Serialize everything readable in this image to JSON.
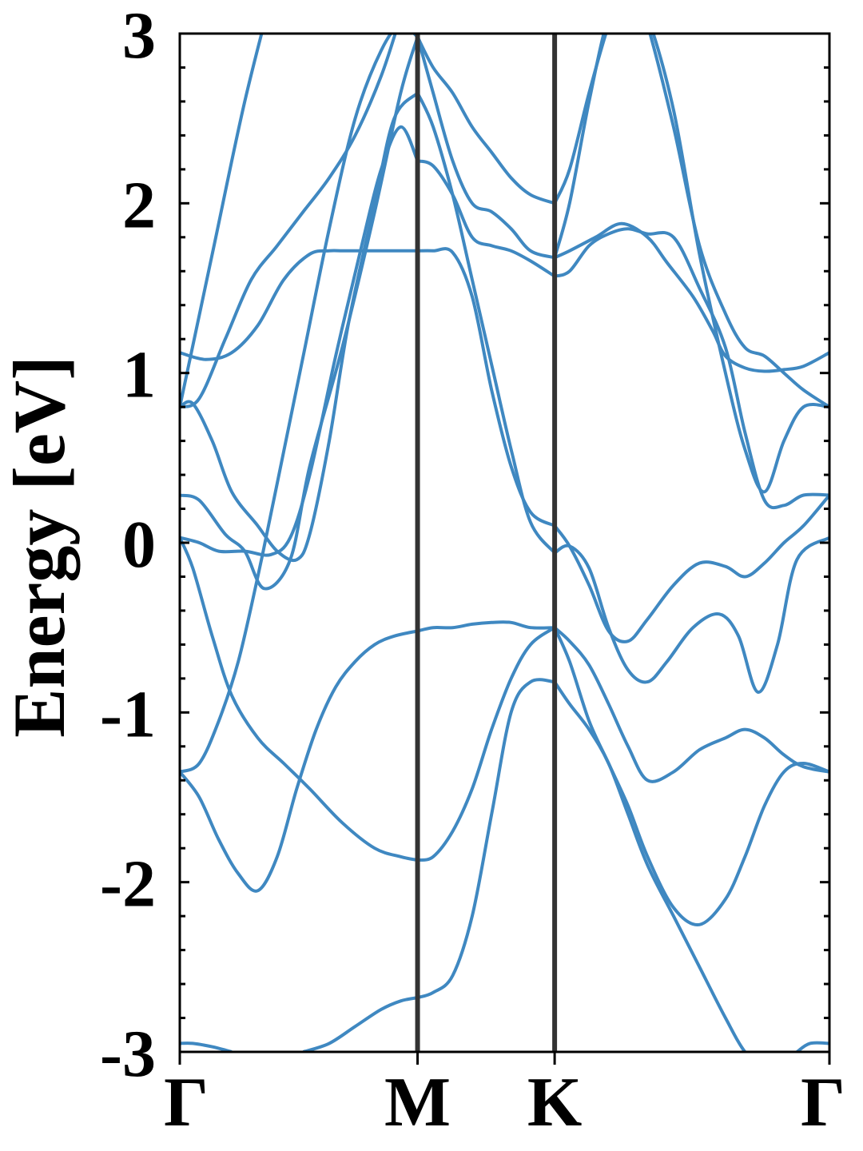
{
  "chart_data": {
    "type": "line",
    "title": "",
    "xlabel": "",
    "ylabel": "Energy [eV]",
    "ylim": [
      -3,
      3
    ],
    "y_ticks": [
      "3",
      "2",
      "1",
      "0",
      "-1",
      "-2",
      "-3"
    ],
    "y_tick_values": [
      3,
      2,
      1,
      0,
      -1,
      -2,
      -3
    ],
    "y_minor_step": 0.2,
    "k_path": [
      {
        "label": "Γ",
        "k": 0.0
      },
      {
        "label": "M",
        "k": 0.366
      },
      {
        "label": "K",
        "k": 0.577
      },
      {
        "label": "Γ",
        "k": 1.0
      }
    ],
    "line_color": "#3f88c1",
    "vline_color": "#333333",
    "grid": false,
    "legend": "none",
    "series": [
      {
        "x": [
          0,
          0.05,
          0.1,
          0.15,
          0.19
        ],
        "y": [
          0.8,
          1.7,
          2.6,
          3.35,
          3.9
        ]
      },
      {
        "x": [
          0,
          0.04,
          0.08,
          0.12,
          0.16,
          0.2,
          0.23,
          0.25,
          0.28,
          0.3,
          0.33,
          0.366
        ],
        "y": [
          1.12,
          1.08,
          1.12,
          1.28,
          1.55,
          1.7,
          1.72,
          1.72,
          1.72,
          1.72,
          1.72,
          1.72
        ]
      },
      {
        "x": [
          0.366,
          0.39,
          0.42,
          0.45,
          0.48,
          0.51,
          0.54,
          0.577
        ],
        "y": [
          1.72,
          1.72,
          1.71,
          1.45,
          0.9,
          0.45,
          0.18,
          0.1
        ]
      },
      {
        "x": [
          0.577,
          0.6,
          0.63,
          0.66,
          0.69,
          0.72,
          0.76,
          0.8,
          0.84,
          0.87,
          0.9,
          0.93,
          0.96,
          1.0
        ],
        "y": [
          0.1,
          -0.02,
          -0.25,
          -0.52,
          -0.58,
          -0.45,
          -0.25,
          -0.12,
          -0.14,
          -0.2,
          -0.12,
          0.0,
          0.1,
          0.28
        ]
      },
      {
        "x": [
          0,
          0.02,
          0.05,
          0.08,
          0.12,
          0.15,
          0.18,
          0.2,
          0.23,
          0.26,
          0.3,
          0.33,
          0.366
        ],
        "y": [
          0.8,
          0.82,
          0.6,
          0.3,
          0.1,
          -0.05,
          -0.1,
          0.05,
          0.6,
          1.3,
          2.0,
          2.5,
          2.65
        ]
      },
      {
        "x": [
          0.366,
          0.39,
          0.42,
          0.45,
          0.48,
          0.51,
          0.54,
          0.577
        ],
        "y": [
          2.65,
          2.45,
          2.05,
          1.55,
          1.05,
          0.55,
          0.12,
          -0.06
        ]
      },
      {
        "x": [
          0.577,
          0.6,
          0.63,
          0.66,
          0.69,
          0.72,
          0.75,
          0.79,
          0.83,
          0.86,
          0.89,
          0.92,
          0.95,
          1.0
        ],
        "y": [
          -0.06,
          -0.02,
          -0.15,
          -0.5,
          -0.75,
          -0.82,
          -0.7,
          -0.5,
          -0.42,
          -0.55,
          -0.88,
          -0.6,
          -0.1,
          0.03
        ]
      },
      {
        "x": [
          0,
          0.03,
          0.07,
          0.11,
          0.15,
          0.19,
          0.23,
          0.27,
          0.31,
          0.34,
          0.366
        ],
        "y": [
          0.8,
          0.85,
          1.2,
          1.55,
          1.75,
          1.95,
          2.15,
          2.4,
          2.75,
          3.1,
          3.4
        ]
      },
      {
        "x": [
          0,
          0.03,
          0.07,
          0.1,
          0.13,
          0.17,
          0.2,
          0.25,
          0.3,
          0.34,
          0.366
        ],
        "y": [
          0.28,
          0.25,
          0.05,
          -0.05,
          -0.27,
          -0.1,
          0.45,
          1.15,
          1.95,
          2.65,
          2.98
        ]
      },
      {
        "x": [
          0.366,
          0.39,
          0.42,
          0.45,
          0.48,
          0.51,
          0.54,
          0.577
        ],
        "y": [
          2.98,
          2.65,
          2.25,
          2.0,
          1.95,
          1.85,
          1.72,
          1.68
        ]
      },
      {
        "x": [
          0.577,
          0.6,
          0.64,
          0.68,
          0.72,
          0.75,
          0.79,
          0.82,
          0.84,
          0.87,
          0.9,
          0.93,
          0.96,
          1.0
        ],
        "y": [
          1.68,
          1.72,
          1.8,
          1.88,
          1.8,
          1.65,
          1.45,
          1.25,
          1.1,
          1.03,
          1.01,
          1.02,
          1.04,
          1.12
        ]
      },
      {
        "x": [
          0,
          0.03,
          0.06,
          0.1,
          0.14,
          0.17,
          0.2,
          0.24,
          0.28,
          0.31,
          0.34,
          0.366
        ],
        "y": [
          0.03,
          0.0,
          -0.05,
          -0.05,
          -0.07,
          0.03,
          0.4,
          1.1,
          1.75,
          2.2,
          2.45,
          2.25
        ]
      },
      {
        "x": [
          0.366,
          0.39,
          0.42,
          0.45,
          0.48,
          0.51,
          0.54,
          0.577
        ],
        "y": [
          2.25,
          2.22,
          2.05,
          1.8,
          1.75,
          1.72,
          1.66,
          1.57
        ]
      },
      {
        "x": [
          0.577,
          0.6,
          0.63,
          0.66,
          0.69,
          0.72,
          0.76,
          0.8,
          0.84,
          0.87,
          0.9,
          0.93,
          0.96,
          1.0
        ],
        "y": [
          1.57,
          1.6,
          1.75,
          1.82,
          1.85,
          1.82,
          1.8,
          1.5,
          1.15,
          0.65,
          0.25,
          0.22,
          0.28,
          0.28
        ]
      },
      {
        "x": [
          0,
          0.03,
          0.06,
          0.09,
          0.12,
          0.15,
          0.19,
          0.23,
          0.27,
          0.31,
          0.34,
          0.366
        ],
        "y": [
          -1.35,
          -1.3,
          -1.05,
          -0.7,
          -0.2,
          0.35,
          1.1,
          1.85,
          2.5,
          2.9,
          3.05,
          2.98
        ]
      },
      {
        "x": [
          0.366,
          0.39,
          0.42,
          0.45,
          0.48,
          0.51,
          0.54,
          0.577
        ],
        "y": [
          2.98,
          2.8,
          2.65,
          2.45,
          2.3,
          2.15,
          2.05,
          2.0
        ]
      },
      {
        "x": [
          0.577,
          0.6,
          0.63,
          0.66,
          0.69,
          0.72,
          0.76,
          0.8,
          0.84,
          0.87,
          0.9,
          0.93,
          0.96,
          1.0
        ],
        "y": [
          2.0,
          2.2,
          2.65,
          3.05,
          3.35,
          3.05,
          2.45,
          1.75,
          1.35,
          1.15,
          1.1,
          1.0,
          0.9,
          0.8
        ]
      },
      {
        "x": [
          0.577,
          0.6,
          0.63,
          0.66,
          0.69,
          0.72,
          0.76,
          0.8,
          0.84,
          0.87,
          0.9,
          0.93,
          0.96,
          1.0
        ],
        "y": [
          1.68,
          2.0,
          2.6,
          3.1,
          3.3,
          3.1,
          2.55,
          1.7,
          1.0,
          0.55,
          0.3,
          0.6,
          0.8,
          0.8
        ]
      },
      {
        "x": [
          0,
          0.02,
          0.05,
          0.08,
          0.12,
          0.16,
          0.2,
          0.25,
          0.3,
          0.34,
          0.366
        ],
        "y": [
          0.03,
          -0.15,
          -0.55,
          -0.9,
          -1.15,
          -1.3,
          -1.45,
          -1.65,
          -1.8,
          -1.85,
          -1.87
        ]
      },
      {
        "x": [
          0.366,
          0.39,
          0.42,
          0.45,
          0.48,
          0.51,
          0.54,
          0.577
        ],
        "y": [
          -1.87,
          -1.85,
          -1.7,
          -1.45,
          -1.1,
          -0.8,
          -0.6,
          -0.5
        ]
      },
      {
        "x": [
          0.577,
          0.6,
          0.63,
          0.66,
          0.69,
          0.72,
          0.76,
          0.8,
          0.84,
          0.87,
          0.9,
          0.93,
          0.96,
          1.0
        ],
        "y": [
          -0.5,
          -0.58,
          -0.72,
          -0.95,
          -1.2,
          -1.4,
          -1.35,
          -1.22,
          -1.15,
          -1.1,
          -1.15,
          -1.25,
          -1.32,
          -1.35
        ]
      },
      {
        "x": [
          0,
          0.03,
          0.06,
          0.09,
          0.12,
          0.15,
          0.18,
          0.21,
          0.24,
          0.27,
          0.3,
          0.33,
          0.366
        ],
        "y": [
          -1.35,
          -1.5,
          -1.75,
          -1.95,
          -2.05,
          -1.85,
          -1.45,
          -1.1,
          -0.85,
          -0.7,
          -0.6,
          -0.55,
          -0.52
        ]
      },
      {
        "x": [
          0.366,
          0.39,
          0.42,
          0.45,
          0.48,
          0.51,
          0.54,
          0.577
        ],
        "y": [
          -0.52,
          -0.5,
          -0.5,
          -0.48,
          -0.47,
          -0.47,
          -0.5,
          -0.5
        ]
      },
      {
        "x": [
          0.577,
          0.6,
          0.63,
          0.66,
          0.69,
          0.72,
          0.76,
          0.8,
          0.84,
          0.87,
          0.9,
          0.93,
          0.96,
          1.0
        ],
        "y": [
          -0.5,
          -0.7,
          -1.05,
          -1.3,
          -1.55,
          -1.85,
          -2.15,
          -2.25,
          -2.1,
          -1.85,
          -1.55,
          -1.35,
          -1.3,
          -1.35
        ]
      },
      {
        "x": [
          0.19,
          0.23,
          0.27,
          0.31,
          0.34,
          0.366
        ],
        "y": [
          -3.0,
          -2.95,
          -2.85,
          -2.75,
          -2.7,
          -2.68
        ]
      },
      {
        "x": [
          0.366,
          0.39,
          0.42,
          0.45,
          0.48,
          0.51,
          0.54,
          0.577
        ],
        "y": [
          -2.68,
          -2.65,
          -2.55,
          -2.2,
          -1.6,
          -1.0,
          -0.82,
          -0.82
        ]
      },
      {
        "x": [
          0.577,
          0.6,
          0.63,
          0.66,
          0.69,
          0.72,
          0.76,
          0.8,
          0.84,
          0.87,
          0.9,
          0.93,
          0.95
        ],
        "y": [
          -0.82,
          -0.95,
          -1.1,
          -1.3,
          -1.6,
          -1.9,
          -2.2,
          -2.5,
          -2.8,
          -3.0,
          -3.1,
          -3.1,
          -3.05
        ]
      },
      {
        "x": [
          0,
          0.02,
          0.05,
          0.08
        ],
        "y": [
          -2.95,
          -2.95,
          -2.97,
          -3.0
        ]
      },
      {
        "x": [
          0.95,
          0.97,
          1.0
        ],
        "y": [
          -3.0,
          -2.95,
          -2.95
        ]
      }
    ]
  }
}
